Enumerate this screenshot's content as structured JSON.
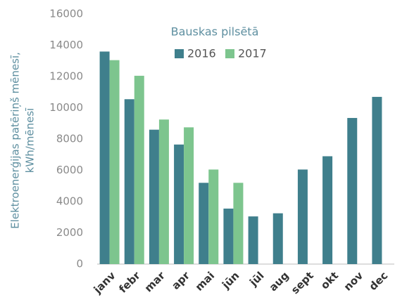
{
  "chart_data": {
    "type": "bar",
    "legend_title": "Bauskas pilsētā",
    "y_label": [
      "Elektroenerģijas patēriņš mēnesī,",
      "kWh/mēnesī"
    ],
    "categories": [
      "janv",
      "febr",
      "mar",
      "apr",
      "mai",
      "jūn",
      "jūl",
      "aug",
      "sept",
      "okt",
      "nov",
      "dec"
    ],
    "series": [
      {
        "name": "2016",
        "color": "#3f7f8c",
        "values": [
          13600,
          10550,
          8600,
          7650,
          5200,
          3550,
          3050,
          3250,
          6050,
          6900,
          9350,
          10700
        ]
      },
      {
        "name": "2017",
        "color": "#7dc58e",
        "values": [
          13050,
          12050,
          9250,
          8750,
          6050,
          5200,
          null,
          null,
          null,
          null,
          null,
          null
        ]
      }
    ],
    "ylim": [
      0,
      16000
    ],
    "yticks": [
      0,
      2000,
      4000,
      6000,
      8000,
      10000,
      12000,
      14000,
      16000
    ],
    "grid": false
  }
}
